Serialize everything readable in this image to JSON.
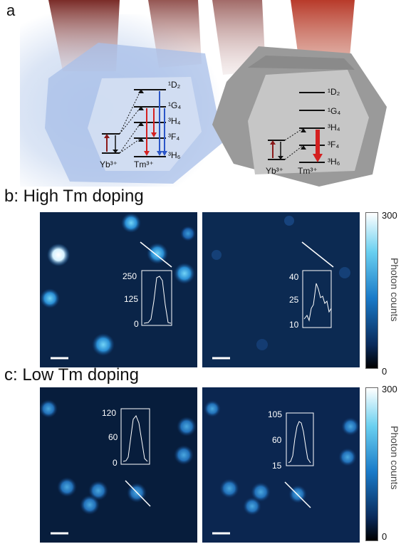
{
  "panel_a": {
    "letter": "a",
    "left_diagram": {
      "levels": [
        "¹D₂",
        "¹G₄",
        "³H₄",
        "³F₄",
        "³H₆"
      ],
      "ions": [
        "Yb³⁺",
        "Tm³⁺"
      ]
    },
    "right_diagram": {
      "levels": [
        "¹D₂",
        "¹G₄",
        "³H₄",
        "³F₄",
        "³H₆"
      ],
      "ions": [
        "Yb³⁺",
        "Tm³⁺"
      ]
    },
    "colors": {
      "red_emission": "#d42020",
      "blue_emission": "#2a55c8",
      "dark_red": "#8b1a1a"
    }
  },
  "section_b": {
    "title": "b: High Tm doping",
    "left_inset": {
      "ticks": [
        "250",
        "125",
        "0"
      ]
    },
    "right_inset": {
      "ticks": [
        "40",
        "25",
        "10"
      ]
    }
  },
  "section_c": {
    "title": "c: Low Tm doping",
    "left_inset": {
      "ticks": [
        "120",
        "60",
        "0"
      ]
    },
    "right_inset": {
      "ticks": [
        "105",
        "60",
        "15"
      ]
    }
  },
  "colorbar": {
    "max": "300",
    "min": "0",
    "label": "Photon counts",
    "colors": [
      "#ffffff",
      "#6ad0f0",
      "#1a7ac8",
      "#0a2a5a",
      "#000000"
    ]
  }
}
